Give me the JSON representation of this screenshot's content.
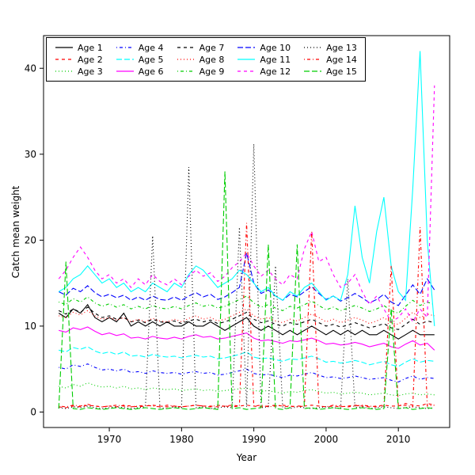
{
  "figure": {
    "background": "#ffffff",
    "frame_color": "#000000"
  },
  "chart_data": {
    "type": "line",
    "title": "",
    "xlabel": "Year",
    "ylabel": "Catch mean weight",
    "xlim": [
      1960.9,
      2017.1
    ],
    "ylim": [
      -1.8,
      43.8
    ],
    "xticks": [
      1970,
      1980,
      1990,
      2000,
      2010
    ],
    "yticks": [
      0,
      10,
      20,
      30,
      40
    ],
    "grid": false,
    "legend": {
      "position": "top-left",
      "columns": 5,
      "rows": 3
    },
    "x": [
      1963,
      1964,
      1965,
      1966,
      1967,
      1968,
      1969,
      1970,
      1971,
      1972,
      1973,
      1974,
      1975,
      1976,
      1977,
      1978,
      1979,
      1980,
      1981,
      1982,
      1983,
      1984,
      1985,
      1986,
      1987,
      1988,
      1989,
      1990,
      1991,
      1992,
      1993,
      1994,
      1995,
      1996,
      1997,
      1998,
      1999,
      2000,
      2001,
      2002,
      2003,
      2004,
      2005,
      2006,
      2007,
      2008,
      2009,
      2010,
      2011,
      2012,
      2013,
      2014,
      2015
    ],
    "series": [
      {
        "name": "Age 1",
        "color": "#000000",
        "linetype": "solid",
        "values": [
          11.5,
          11.0,
          12.0,
          11.5,
          12.5,
          11.0,
          10.5,
          11.0,
          10.5,
          11.5,
          10.0,
          10.5,
          10.0,
          10.5,
          10.0,
          10.5,
          10.0,
          10.0,
          10.5,
          10.0,
          10.0,
          10.5,
          10.0,
          9.5,
          10.0,
          10.5,
          11.0,
          10.0,
          9.5,
          10.0,
          9.5,
          9.0,
          9.5,
          9.0,
          9.5,
          10.0,
          9.5,
          9.0,
          9.5,
          9.0,
          9.5,
          9.0,
          9.5,
          9.0,
          9.0,
          9.5,
          9.0,
          8.5,
          9.0,
          9.5,
          9.0,
          9.0,
          9.0
        ]
      },
      {
        "name": "Age 2",
        "color": "#FF0000",
        "linetype": "dashed",
        "values": [
          0.6,
          0.5,
          0.7,
          0.6,
          0.8,
          0.7,
          0.6,
          0.7,
          0.6,
          0.8,
          0.7,
          0.6,
          0.7,
          0.8,
          0.7,
          0.6,
          0.7,
          0.6,
          0.7,
          0.8,
          0.7,
          0.7,
          0.6,
          0.7,
          0.8,
          0.7,
          0.8,
          0.7,
          0.6,
          0.7,
          0.8,
          0.7,
          0.6,
          0.7,
          0.7,
          0.8,
          0.7,
          0.6,
          0.7,
          0.6,
          0.7,
          0.8,
          0.7,
          0.6,
          0.7,
          0.8,
          0.7,
          0.7,
          1.0,
          0.8,
          0.7,
          1.0,
          0.8
        ]
      },
      {
        "name": "Age 3",
        "color": "#00CD00",
        "linetype": "dotted",
        "values": [
          3.0,
          2.8,
          3.2,
          3.0,
          3.4,
          3.1,
          2.9,
          3.0,
          2.8,
          3.0,
          2.7,
          2.8,
          2.6,
          2.8,
          2.7,
          2.6,
          2.7,
          2.5,
          2.6,
          2.7,
          2.5,
          2.6,
          2.4,
          2.5,
          2.6,
          2.7,
          2.8,
          2.5,
          2.4,
          2.5,
          2.3,
          2.2,
          2.4,
          2.3,
          2.5,
          2.6,
          2.4,
          2.2,
          2.3,
          2.1,
          2.2,
          2.3,
          2.2,
          2.0,
          2.1,
          2.2,
          2.0,
          1.9,
          2.1,
          2.2,
          2.0,
          2.1,
          2.0
        ]
      },
      {
        "name": "Age 4",
        "color": "#0000FF",
        "linetype": "dotdash",
        "values": [
          5.2,
          5.0,
          5.5,
          5.3,
          5.6,
          5.2,
          4.9,
          5.0,
          4.8,
          5.0,
          4.6,
          4.7,
          4.5,
          4.8,
          4.6,
          4.5,
          4.6,
          4.4,
          4.6,
          4.7,
          4.5,
          4.6,
          4.3,
          4.4,
          4.6,
          4.8,
          5.0,
          4.5,
          4.3,
          4.4,
          4.2,
          4.0,
          4.3,
          4.2,
          4.4,
          4.6,
          4.3,
          4.0,
          4.1,
          3.9,
          4.0,
          4.2,
          4.0,
          3.8,
          3.9,
          4.0,
          3.7,
          3.5,
          3.9,
          4.2,
          3.8,
          4.0,
          3.9
        ]
      },
      {
        "name": "Age 5",
        "color": "#00FFFF",
        "linetype": "longdash",
        "values": [
          7.2,
          7.0,
          7.5,
          7.3,
          7.6,
          7.1,
          6.8,
          7.0,
          6.7,
          7.0,
          6.5,
          6.6,
          6.4,
          6.7,
          6.5,
          6.4,
          6.5,
          6.3,
          6.5,
          6.6,
          6.4,
          6.5,
          6.2,
          6.3,
          6.5,
          6.7,
          7.0,
          6.4,
          6.2,
          6.3,
          6.1,
          5.9,
          6.2,
          6.1,
          6.3,
          6.5,
          6.2,
          5.8,
          5.9,
          5.7,
          5.8,
          6.0,
          5.8,
          5.5,
          5.7,
          5.9,
          5.5,
          5.3,
          5.8,
          6.2,
          5.8,
          6.0,
          5.9
        ]
      },
      {
        "name": "Age 6",
        "color": "#FF00FF",
        "linetype": "solid",
        "values": [
          9.5,
          9.3,
          9.8,
          9.6,
          9.9,
          9.4,
          9.0,
          9.2,
          8.9,
          9.1,
          8.6,
          8.7,
          8.5,
          8.8,
          8.6,
          8.5,
          8.7,
          8.5,
          8.8,
          9.0,
          8.7,
          8.8,
          8.5,
          8.6,
          8.8,
          9.0,
          9.2,
          8.6,
          8.3,
          8.4,
          8.2,
          8.0,
          8.3,
          8.2,
          8.4,
          8.6,
          8.3,
          7.9,
          8.0,
          7.8,
          7.9,
          8.1,
          7.9,
          7.6,
          7.8,
          8.0,
          7.6,
          7.4,
          7.9,
          8.3,
          7.8,
          8.0,
          7.2
        ]
      },
      {
        "name": "Age 7",
        "color": "#000000",
        "linetype": "dashed",
        "values": [
          11.8,
          11.4,
          12.0,
          11.6,
          12.2,
          11.5,
          11.0,
          11.2,
          10.8,
          11.0,
          10.5,
          10.7,
          10.4,
          10.8,
          10.5,
          10.4,
          10.6,
          10.3,
          10.6,
          10.8,
          10.5,
          10.7,
          10.3,
          10.5,
          10.8,
          11.2,
          11.6,
          10.8,
          10.4,
          10.6,
          10.2,
          10.0,
          10.4,
          10.2,
          10.5,
          10.8,
          10.4,
          10.0,
          10.2,
          9.9,
          10.1,
          10.4,
          10.1,
          9.8,
          10.0,
          10.3,
          9.8,
          9.6,
          10.2,
          10.8,
          10.2,
          10.6,
          10.4
        ]
      },
      {
        "name": "Age 8",
        "color": "#FF0000",
        "linetype": "dotted",
        "values": [
          11.2,
          11.0,
          11.6,
          11.3,
          11.8,
          11.2,
          10.8,
          11.0,
          10.7,
          11.0,
          10.5,
          10.8,
          10.5,
          10.9,
          10.6,
          10.5,
          10.8,
          10.5,
          10.9,
          11.2,
          10.8,
          11.0,
          10.6,
          10.8,
          11.2,
          11.6,
          12.0,
          11.2,
          10.8,
          11.0,
          10.6,
          10.4,
          10.8,
          10.6,
          11.0,
          11.4,
          11.0,
          10.5,
          10.8,
          10.4,
          10.7,
          11.0,
          10.7,
          10.3,
          10.6,
          11.0,
          10.4,
          10.2,
          10.9,
          11.6,
          11.0,
          11.4,
          11.2
        ]
      },
      {
        "name": "Age 9",
        "color": "#00CD00",
        "linetype": "dotdash",
        "values": [
          12.8,
          12.5,
          13.2,
          12.8,
          13.4,
          12.7,
          12.3,
          12.6,
          12.2,
          12.5,
          12.0,
          12.3,
          12.0,
          12.4,
          12.1,
          12.0,
          12.3,
          12.0,
          12.4,
          12.7,
          12.3,
          12.5,
          12.1,
          12.3,
          12.7,
          13.1,
          13.5,
          12.7,
          12.2,
          12.5,
          12.1,
          11.8,
          12.3,
          12.1,
          12.5,
          12.9,
          12.4,
          11.9,
          12.2,
          11.8,
          12.1,
          12.4,
          12.1,
          11.7,
          12.0,
          12.4,
          11.8,
          11.5,
          12.3,
          13.0,
          12.4,
          12.8,
          12.5
        ]
      },
      {
        "name": "Age 10",
        "color": "#0000FF",
        "linetype": "longdash",
        "values": [
          14.0,
          13.6,
          14.4,
          14.0,
          14.7,
          13.9,
          13.4,
          13.7,
          13.3,
          13.6,
          13.0,
          13.4,
          13.0,
          13.5,
          13.1,
          13.0,
          13.4,
          13.0,
          13.5,
          13.9,
          13.4,
          13.7,
          13.1,
          13.4,
          13.9,
          14.5,
          18.5,
          15.0,
          13.8,
          14.2,
          13.5,
          13.0,
          13.7,
          13.4,
          14.0,
          14.6,
          13.8,
          13.1,
          13.5,
          12.9,
          13.3,
          13.8,
          13.3,
          12.7,
          13.1,
          13.7,
          12.8,
          12.4,
          13.6,
          14.8,
          13.7,
          15.5,
          14.2
        ]
      },
      {
        "name": "Age 11",
        "color": "#00FFFF",
        "linetype": "solid",
        "values": [
          14.0,
          14.5,
          15.5,
          16.0,
          17.0,
          16.0,
          15.0,
          15.5,
          14.5,
          15.0,
          14.0,
          14.5,
          14.0,
          15.0,
          14.5,
          14.0,
          15.0,
          14.5,
          16.0,
          17.0,
          16.5,
          15.5,
          14.5,
          15.0,
          15.5,
          16.5,
          16.0,
          15.0,
          14.0,
          14.5,
          13.5,
          13.0,
          14.0,
          13.5,
          14.5,
          15.0,
          14.0,
          13.0,
          13.5,
          13.0,
          16.0,
          24.0,
          18.0,
          15.0,
          21.0,
          25.0,
          17.0,
          14.0,
          13.0,
          26.0,
          42.0,
          20.0,
          10.0
        ]
      },
      {
        "name": "Age 12",
        "color": "#FF00FF",
        "linetype": "dashed",
        "values": [
          15.5,
          16.5,
          18.0,
          19.2,
          18.0,
          16.5,
          15.5,
          16.0,
          15.0,
          15.5,
          14.5,
          15.5,
          14.8,
          16.0,
          15.2,
          14.8,
          15.5,
          14.8,
          15.8,
          16.5,
          15.8,
          16.2,
          15.2,
          15.8,
          16.8,
          17.5,
          18.5,
          17.0,
          15.8,
          16.5,
          15.5,
          14.8,
          16.0,
          15.5,
          19.0,
          21.0,
          17.5,
          18.0,
          16.0,
          14.5,
          15.0,
          16.0,
          14.0,
          12.5,
          13.5,
          12.0,
          10.5,
          11.0,
          12.0,
          10.5,
          12.0,
          11.0,
          38.0
        ]
      },
      {
        "name": "Age 13",
        "color": "#000000",
        "linetype": "dotted",
        "values": [
          0.5,
          0.4,
          0.6,
          0.5,
          0.7,
          0.5,
          0.4,
          0.5,
          0.6,
          0.5,
          0.4,
          0.5,
          0.6,
          20.5,
          0.5,
          0.4,
          0.6,
          0.5,
          28.5,
          0.5,
          0.6,
          0.4,
          0.5,
          0.6,
          0.5,
          21.5,
          0.6,
          31.2,
          0.5,
          0.6,
          17.0,
          0.5,
          0.4,
          0.6,
          0.5,
          0.4,
          0.5,
          0.6,
          0.5,
          0.4,
          15.5,
          0.5,
          0.6,
          0.4,
          0.5,
          0.6,
          0.5,
          0.4,
          0.5,
          0.6,
          0.5,
          0.4,
          0.5
        ]
      },
      {
        "name": "Age 14",
        "color": "#FF0000",
        "linetype": "dotdash",
        "values": [
          0.7,
          0.6,
          0.8,
          0.7,
          0.9,
          0.7,
          0.6,
          0.7,
          0.8,
          0.7,
          0.6,
          0.7,
          0.8,
          0.7,
          0.6,
          0.8,
          0.7,
          0.6,
          0.7,
          0.8,
          0.7,
          0.6,
          0.8,
          0.7,
          0.6,
          0.7,
          22.0,
          0.7,
          0.8,
          0.6,
          0.7,
          0.8,
          0.7,
          0.6,
          0.7,
          21.0,
          0.7,
          0.6,
          0.8,
          0.7,
          0.6,
          0.7,
          0.8,
          0.7,
          0.6,
          0.7,
          17.0,
          0.7,
          0.8,
          0.6,
          21.5,
          0.7,
          0.8
        ]
      },
      {
        "name": "Age 15",
        "color": "#00CD00",
        "linetype": "longdash",
        "values": [
          0.4,
          17.5,
          0.4,
          0.3,
          0.5,
          0.4,
          0.3,
          0.4,
          0.5,
          0.4,
          0.3,
          0.4,
          0.5,
          0.4,
          0.3,
          0.4,
          0.5,
          0.4,
          0.3,
          0.4,
          0.5,
          0.4,
          0.3,
          28.0,
          0.4,
          0.5,
          0.3,
          0.4,
          0.5,
          19.5,
          0.4,
          0.3,
          0.5,
          19.5,
          0.4,
          0.5,
          0.3,
          0.4,
          0.5,
          0.4,
          0.3,
          0.4,
          0.5,
          0.4,
          0.3,
          0.4,
          12.0,
          0.4,
          0.5,
          0.3,
          0.4,
          0.5,
          0.4
        ]
      }
    ]
  }
}
